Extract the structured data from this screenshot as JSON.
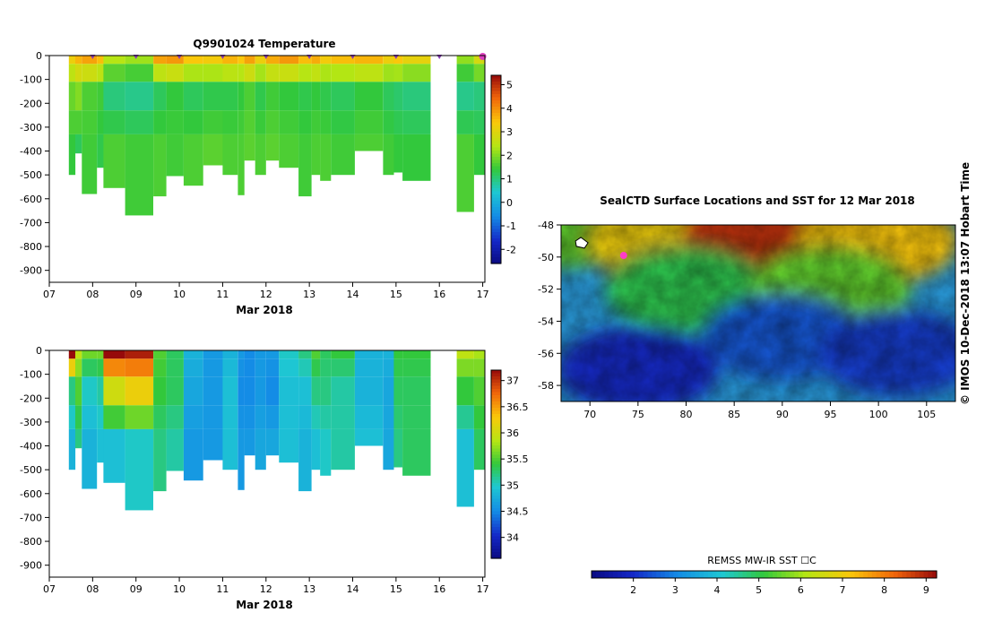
{
  "chart_data": [
    {
      "type": "heatmap",
      "title": "Q9901024  Temperature",
      "xlabel": "Mar 2018",
      "x_ticks": [
        "07",
        "08",
        "09",
        "10",
        "11",
        "12",
        "13",
        "14",
        "15",
        "16",
        "17"
      ],
      "xlim": [
        7,
        17.05
      ],
      "ylim": [
        -950,
        0
      ],
      "y_ticks": [
        "0",
        "-100",
        "-200",
        "-300",
        "-400",
        "-500",
        "-600",
        "-700",
        "-800",
        "-900"
      ],
      "y_tick_values": [
        0,
        -100,
        -200,
        -300,
        -400,
        -500,
        -600,
        -700,
        -800,
        -900
      ],
      "colorbar": {
        "min": -2.6,
        "max": 5.4,
        "ticks": [
          "5",
          "4",
          "3",
          "2",
          "1",
          "0",
          "-1",
          "-2"
        ],
        "tick_values": [
          5,
          4,
          3,
          2,
          1,
          0,
          -1,
          -2
        ]
      },
      "surface_markers": [
        8.0,
        9.0,
        10.0,
        11.0,
        12.0,
        13.0,
        14.0,
        15.0,
        16.0,
        17.0
      ],
      "profiles": [
        {
          "t0": 7.45,
          "t1": 7.6,
          "depth": 500,
          "surf": 3.2,
          "mix": 1.8,
          "deep": 1.4
        },
        {
          "t0": 7.6,
          "t1": 7.75,
          "depth": 410,
          "surf": 3.6,
          "mix": 2.0,
          "deep": 1.2
        },
        {
          "t0": 7.75,
          "t1": 8.1,
          "depth": 580,
          "surf": 3.8,
          "mix": 1.6,
          "deep": 1.5
        },
        {
          "t0": 8.1,
          "t1": 8.25,
          "depth": 470,
          "surf": 3.5,
          "mix": 1.5,
          "deep": 1.3
        },
        {
          "t0": 8.25,
          "t1": 8.75,
          "depth": 555,
          "surf": 2.4,
          "mix": 1.0,
          "deep": 1.6
        },
        {
          "t0": 8.75,
          "t1": 9.4,
          "depth": 670,
          "surf": 2.2,
          "mix": 0.9,
          "deep": 1.5
        },
        {
          "t0": 9.4,
          "t1": 9.7,
          "depth": 590,
          "surf": 3.8,
          "mix": 1.2,
          "deep": 1.6
        },
        {
          "t0": 9.7,
          "t1": 10.1,
          "depth": 505,
          "surf": 3.9,
          "mix": 1.4,
          "deep": 1.5
        },
        {
          "t0": 10.1,
          "t1": 10.55,
          "depth": 545,
          "surf": 3.4,
          "mix": 1.2,
          "deep": 1.6
        },
        {
          "t0": 10.55,
          "t1": 11.0,
          "depth": 460,
          "surf": 3.3,
          "mix": 1.3,
          "deep": 1.7
        },
        {
          "t0": 11.0,
          "t1": 11.35,
          "depth": 500,
          "surf": 3.6,
          "mix": 1.3,
          "deep": 1.6
        },
        {
          "t0": 11.35,
          "t1": 11.5,
          "depth": 585,
          "surf": 3.4,
          "mix": 1.4,
          "deep": 1.6
        },
        {
          "t0": 11.5,
          "t1": 11.75,
          "depth": 440,
          "surf": 3.8,
          "mix": 1.6,
          "deep": 1.7
        },
        {
          "t0": 11.75,
          "t1": 12.0,
          "depth": 500,
          "surf": 3.2,
          "mix": 1.3,
          "deep": 1.6
        },
        {
          "t0": 12.0,
          "t1": 12.3,
          "depth": 440,
          "surf": 3.7,
          "mix": 1.5,
          "deep": 1.7
        },
        {
          "t0": 12.3,
          "t1": 12.75,
          "depth": 470,
          "surf": 3.9,
          "mix": 1.4,
          "deep": 1.6
        },
        {
          "t0": 12.75,
          "t1": 13.05,
          "depth": 590,
          "surf": 3.5,
          "mix": 1.3,
          "deep": 1.5
        },
        {
          "t0": 13.05,
          "t1": 13.25,
          "depth": 500,
          "surf": 3.7,
          "mix": 1.4,
          "deep": 1.6
        },
        {
          "t0": 13.25,
          "t1": 13.5,
          "depth": 525,
          "surf": 3.3,
          "mix": 1.3,
          "deep": 1.6
        },
        {
          "t0": 13.5,
          "t1": 14.05,
          "depth": 500,
          "surf": 3.5,
          "mix": 1.2,
          "deep": 1.5
        },
        {
          "t0": 14.05,
          "t1": 14.7,
          "depth": 400,
          "surf": 3.6,
          "mix": 1.4,
          "deep": 1.6
        },
        {
          "t0": 14.7,
          "t1": 14.95,
          "depth": 500,
          "surf": 3.2,
          "mix": 1.2,
          "deep": 1.5
        },
        {
          "t0": 14.95,
          "t1": 15.15,
          "depth": 490,
          "surf": 3.4,
          "mix": 1.1,
          "deep": 1.4
        },
        {
          "t0": 15.15,
          "t1": 15.8,
          "depth": 525,
          "surf": 3.1,
          "mix": 1.0,
          "deep": 1.4
        },
        {
          "t0": 16.4,
          "t1": 16.8,
          "depth": 655,
          "surf": 2.1,
          "mix": 0.9,
          "deep": 1.6
        },
        {
          "t0": 16.8,
          "t1": 17.05,
          "depth": 500,
          "surf": 2.8,
          "mix": 1.0,
          "deep": 1.4
        }
      ]
    },
    {
      "type": "heatmap",
      "title": "",
      "xlabel": "Mar 2018",
      "x_ticks": [
        "07",
        "08",
        "09",
        "10",
        "11",
        "12",
        "13",
        "14",
        "15",
        "16",
        "17"
      ],
      "xlim": [
        7,
        17.05
      ],
      "ylim": [
        -950,
        0
      ],
      "y_ticks": [
        "0",
        "-100",
        "-200",
        "-300",
        "-400",
        "-500",
        "-600",
        "-700",
        "-800",
        "-900"
      ],
      "y_tick_values": [
        0,
        -100,
        -200,
        -300,
        -400,
        -500,
        -600,
        -700,
        -800,
        -900
      ],
      "colorbar": {
        "min": 33.6,
        "max": 37.2,
        "ticks": [
          "37",
          "36.5",
          "36",
          "35.5",
          "35",
          "34.5",
          "34"
        ],
        "tick_values": [
          37,
          36.5,
          36,
          35.5,
          35,
          34.5,
          34
        ]
      },
      "profiles": [
        {
          "t0": 7.45,
          "t1": 7.6,
          "depth": 500,
          "surf": 37.2,
          "mix": 35.2,
          "deep": 34.8
        },
        {
          "t0": 7.6,
          "t1": 7.75,
          "depth": 410,
          "surf": 35.9,
          "mix": 35.5,
          "deep": 35.2
        },
        {
          "t0": 7.75,
          "t1": 8.1,
          "depth": 580,
          "surf": 35.6,
          "mix": 35.0,
          "deep": 34.8
        },
        {
          "t0": 8.1,
          "t1": 8.25,
          "depth": 470,
          "surf": 35.6,
          "mix": 35.1,
          "deep": 34.9
        },
        {
          "t0": 8.25,
          "t1": 8.75,
          "depth": 555,
          "surf": 37.2,
          "mix": 36.0,
          "deep": 34.9
        },
        {
          "t0": 8.75,
          "t1": 9.4,
          "depth": 670,
          "surf": 37.1,
          "mix": 36.2,
          "deep": 35.0
        },
        {
          "t0": 9.4,
          "t1": 9.7,
          "depth": 590,
          "surf": 35.5,
          "mix": 35.4,
          "deep": 35.2
        },
        {
          "t0": 9.7,
          "t1": 10.1,
          "depth": 505,
          "surf": 35.3,
          "mix": 35.3,
          "deep": 35.1
        },
        {
          "t0": 10.1,
          "t1": 10.55,
          "depth": 545,
          "surf": 34.8,
          "mix": 34.7,
          "deep": 34.6
        },
        {
          "t0": 10.55,
          "t1": 11.0,
          "depth": 460,
          "surf": 34.6,
          "mix": 34.6,
          "deep": 34.6
        },
        {
          "t0": 11.0,
          "t1": 11.35,
          "depth": 500,
          "surf": 34.8,
          "mix": 34.9,
          "deep": 34.9
        },
        {
          "t0": 11.35,
          "t1": 11.5,
          "depth": 585,
          "surf": 34.6,
          "mix": 34.5,
          "deep": 34.6
        },
        {
          "t0": 11.5,
          "t1": 11.75,
          "depth": 440,
          "surf": 34.5,
          "mix": 34.5,
          "deep": 34.6
        },
        {
          "t0": 11.75,
          "t1": 12.0,
          "depth": 500,
          "surf": 34.6,
          "mix": 34.6,
          "deep": 34.7
        },
        {
          "t0": 12.0,
          "t1": 12.3,
          "depth": 440,
          "surf": 34.6,
          "mix": 34.5,
          "deep": 34.7
        },
        {
          "t0": 12.3,
          "t1": 12.75,
          "depth": 470,
          "surf": 35.0,
          "mix": 34.9,
          "deep": 34.9
        },
        {
          "t0": 12.75,
          "t1": 13.05,
          "depth": 590,
          "surf": 35.2,
          "mix": 34.9,
          "deep": 34.8
        },
        {
          "t0": 13.05,
          "t1": 13.25,
          "depth": 500,
          "surf": 35.5,
          "mix": 35.2,
          "deep": 34.9
        },
        {
          "t0": 13.25,
          "t1": 13.5,
          "depth": 525,
          "surf": 35.3,
          "mix": 35.2,
          "deep": 35.0
        },
        {
          "t0": 13.5,
          "t1": 14.05,
          "depth": 500,
          "surf": 35.4,
          "mix": 35.1,
          "deep": 35.1
        },
        {
          "t0": 14.05,
          "t1": 14.7,
          "depth": 400,
          "surf": 34.8,
          "mix": 34.8,
          "deep": 34.9
        },
        {
          "t0": 14.7,
          "t1": 14.95,
          "depth": 500,
          "surf": 34.8,
          "mix": 34.7,
          "deep": 34.7
        },
        {
          "t0": 14.95,
          "t1": 15.15,
          "depth": 490,
          "surf": 35.4,
          "mix": 35.3,
          "deep": 35.2
        },
        {
          "t0": 15.15,
          "t1": 15.8,
          "depth": 525,
          "surf": 35.4,
          "mix": 35.3,
          "deep": 35.3
        },
        {
          "t0": 16.4,
          "t1": 16.8,
          "depth": 655,
          "surf": 35.9,
          "mix": 35.4,
          "deep": 34.9
        },
        {
          "t0": 16.8,
          "t1": 17.05,
          "depth": 500,
          "surf": 35.8,
          "mix": 35.5,
          "deep": 35.3
        }
      ]
    },
    {
      "type": "heatmap",
      "title": "SealCTD Surface Locations and SST for 12 Mar 2018",
      "x_ticks": [
        "70",
        "75",
        "80",
        "85",
        "90",
        "95",
        "100",
        "105"
      ],
      "x_tick_values": [
        70,
        75,
        80,
        85,
        90,
        95,
        100,
        105
      ],
      "y_ticks": [
        "-48",
        "-50",
        "-52",
        "-54",
        "-56",
        "-58"
      ],
      "y_tick_values": [
        -48,
        -50,
        -52,
        -54,
        -56,
        -58
      ],
      "xlim": [
        67,
        108
      ],
      "ylim": [
        -59,
        -48
      ],
      "colorbar": {
        "label": "REMSS MW-IR SST ☐C",
        "min": 1.0,
        "max": 9.25,
        "ticks": [
          "2",
          "3",
          "4",
          "5",
          "6",
          "7",
          "8",
          "9"
        ],
        "tick_values": [
          2,
          3,
          4,
          5,
          6,
          7,
          8,
          9
        ]
      },
      "sst_regions": [
        {
          "lon": 67,
          "lat": -48,
          "sst": 5.5
        },
        {
          "lon": 78,
          "lat": -49,
          "sst": 7.0
        },
        {
          "lon": 88,
          "lat": -48.5,
          "sst": 8.8
        },
        {
          "lon": 100,
          "lat": -49,
          "sst": 7.2
        },
        {
          "lon": 80,
          "lat": -52,
          "sst": 5.0
        },
        {
          "lon": 95,
          "lat": -52,
          "sst": 5.5
        },
        {
          "lon": 90,
          "lat": -55,
          "sst": 2.5
        },
        {
          "lon": 75,
          "lat": -57,
          "sst": 2.0
        },
        {
          "lon": 102,
          "lat": -56,
          "sst": 2.2
        }
      ],
      "seal_locations": [
        {
          "lon": 73.5,
          "lat": -49.9
        }
      ]
    }
  ],
  "credit": "©  IMOS 10-Dec-2018 13:07 Hobart Time"
}
